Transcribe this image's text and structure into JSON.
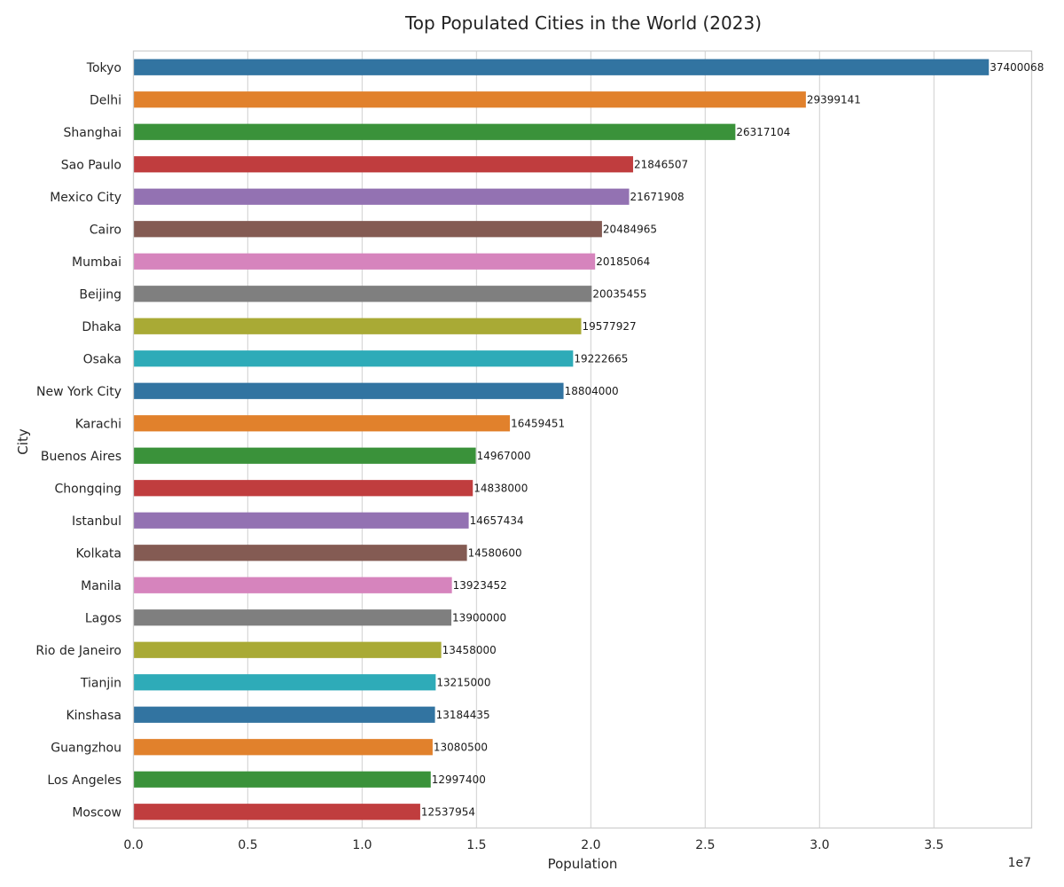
{
  "chart_data": {
    "type": "bar",
    "orientation": "horizontal",
    "title": "Top Populated Cities in the World (2023)",
    "xlabel": "Population",
    "ylabel": "City",
    "x_offset_label": "1e7",
    "x_tick_labels": [
      "0.0",
      "0.5",
      "1.0",
      "1.5",
      "2.0",
      "2.5",
      "3.0",
      "3.5"
    ],
    "x_tick_values": [
      0,
      5000000,
      10000000,
      15000000,
      20000000,
      25000000,
      30000000,
      35000000
    ],
    "xlim": [
      0,
      39270071
    ],
    "grid": "x",
    "categories": [
      "Tokyo",
      "Delhi",
      "Shanghai",
      "Sao Paulo",
      "Mexico City",
      "Cairo",
      "Mumbai",
      "Beijing",
      "Dhaka",
      "Osaka",
      "New York City",
      "Karachi",
      "Buenos Aires",
      "Chongqing",
      "Istanbul",
      "Kolkata",
      "Manila",
      "Lagos",
      "Rio de Janeiro",
      "Tianjin",
      "Kinshasa",
      "Guangzhou",
      "Los Angeles",
      "Moscow"
    ],
    "values": [
      37400068,
      29399141,
      26317104,
      21846507,
      21671908,
      20484965,
      20185064,
      20035455,
      19577927,
      19222665,
      18804000,
      16459451,
      14967000,
      14838000,
      14657434,
      14580600,
      13923452,
      13900000,
      13458000,
      13215000,
      13184435,
      13080500,
      12997400,
      12537954
    ],
    "data_labels": [
      "37400068",
      "29399141",
      "26317104",
      "21846507",
      "21671908",
      "20484965",
      "20185064",
      "20035455",
      "19577927",
      "19222665",
      "18804000",
      "16459451",
      "14967000",
      "14838000",
      "14657434",
      "14580600",
      "13923452",
      "13900000",
      "13458000",
      "13215000",
      "13184435",
      "13080500",
      "12997400",
      "12537954"
    ],
    "palette": [
      "#3274a1",
      "#e1812c",
      "#3a923a",
      "#c03d3e",
      "#9372b2",
      "#845b53",
      "#d684bd",
      "#7f7f7f",
      "#a9aa35",
      "#2eabb8"
    ]
  }
}
